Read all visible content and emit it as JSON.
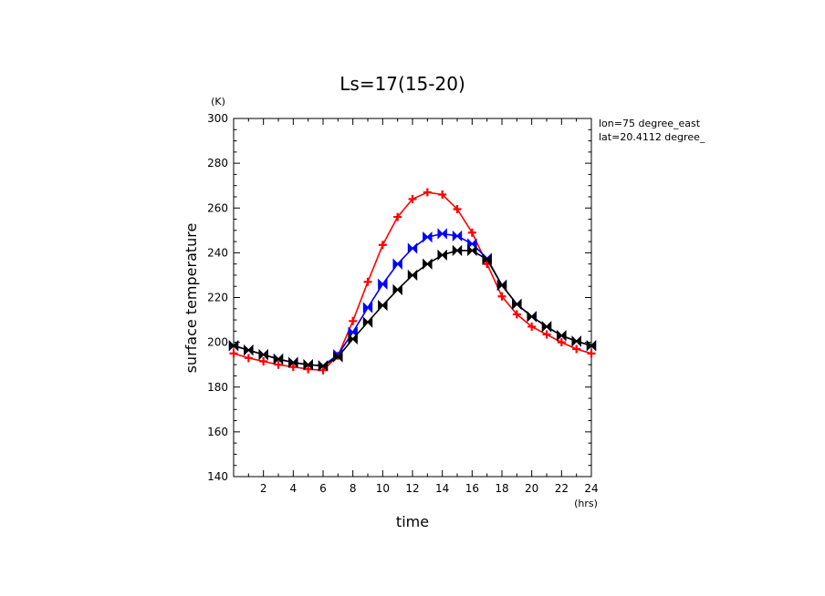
{
  "chart_data": {
    "type": "line",
    "title": "Ls=17(15-20)",
    "xlabel": "time",
    "ylabel": "surface temperature",
    "xunit": "(hrs)",
    "yunit": "(K)",
    "xlim": [
      0,
      24
    ],
    "ylim": [
      140,
      300
    ],
    "xticks": [
      2,
      4,
      6,
      8,
      10,
      12,
      14,
      16,
      18,
      20,
      22,
      24
    ],
    "yticks": [
      140,
      160,
      180,
      200,
      220,
      240,
      260,
      280,
      300
    ],
    "annotations": [
      "lon=75 degree_east",
      "lat=20.4112 degree_"
    ],
    "grid": false,
    "x": [
      0,
      1,
      2,
      3,
      4,
      5,
      6,
      7,
      8,
      9,
      10,
      11,
      12,
      13,
      14,
      15,
      16,
      17,
      18,
      19,
      20,
      21,
      22,
      23,
      24
    ],
    "series": [
      {
        "color": "#ff0000",
        "marker": "plus",
        "values": [
          195,
          193,
          191.5,
          190,
          189,
          188,
          187.5,
          194,
          209.5,
          227,
          243.5,
          256,
          264,
          267,
          266,
          259.5,
          249,
          235,
          220.5,
          212.5,
          207,
          203.5,
          200,
          197,
          195
        ]
      },
      {
        "color": "#0000ff",
        "marker": "bowtie",
        "values": [
          198.5,
          196.5,
          194.5,
          192.5,
          191,
          190,
          189.5,
          194.5,
          204.5,
          215.5,
          226,
          235,
          242,
          247,
          248.5,
          247.5,
          244,
          237.5,
          225.5,
          217,
          211.5,
          207,
          203,
          200.5,
          198.5
        ]
      },
      {
        "color": "#000000",
        "marker": "bowtie",
        "values": [
          198.5,
          196.5,
          194.5,
          192.5,
          191,
          190,
          189.5,
          193.5,
          201.5,
          209,
          216.5,
          223.5,
          230,
          235,
          239,
          241,
          241,
          237,
          225.5,
          217,
          211.5,
          207,
          203,
          200.5,
          198.5
        ]
      }
    ]
  }
}
